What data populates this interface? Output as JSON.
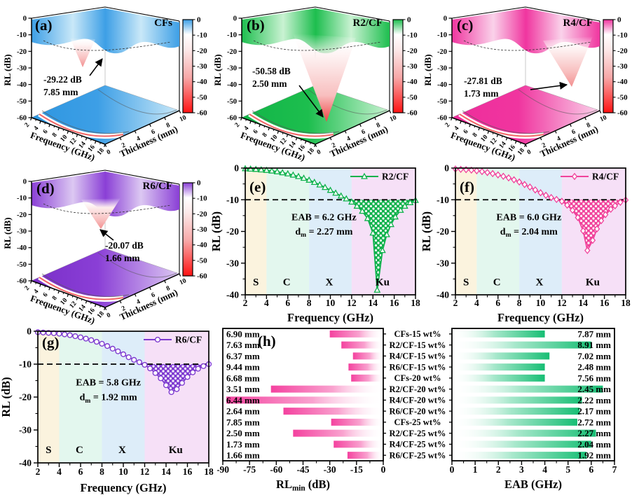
{
  "panels": {
    "a": {
      "letter": "(a)",
      "sample": "CFs"
    },
    "b": {
      "letter": "(b)",
      "sample": "R2/CF"
    },
    "c": {
      "letter": "(c)",
      "sample": "R4/CF"
    },
    "d": {
      "letter": "(d)",
      "sample": "R6/CF"
    },
    "e": {
      "letter": "(e)"
    },
    "f": {
      "letter": "(f)"
    },
    "g": {
      "letter": "(g)"
    },
    "h": {
      "letter": "(h)"
    }
  },
  "colors": {
    "accent_blue": "#3D9FE6",
    "accent_green": "#1DBE4E",
    "accent_magenta": "#F0359F",
    "accent_purple": "#8A3FD6",
    "line_green": "#0DB14B",
    "line_pink": "#F0439B",
    "line_purple": "#7E3BD0",
    "bar_pink": "#F4429F",
    "bar_green": "#17BE74",
    "highlight_red": "#EE1111",
    "band_s": "#FBF3DE",
    "band_c": "#E3F7EE",
    "band_x": "#DDEDF9",
    "band_ku": "#F6E0F7",
    "colorbar_red": "#FF1212"
  },
  "chart_data": [
    {
      "type": "surface3d",
      "panel": "a",
      "sample": "CFs",
      "accent": "#3D9FE6",
      "floor_dark": "#2E96E0",
      "light": "#C9E8F8",
      "annotation": {
        "rl": "-29.22 dB",
        "thickness": "7.85 mm"
      },
      "rl_min_db": -29.22,
      "optimal_thickness_mm": 7.85,
      "x": {
        "label": "Frequency (GHz)",
        "range": [
          2,
          18
        ],
        "ticks": [
          2,
          4,
          6,
          8,
          10,
          12,
          14,
          16,
          18
        ]
      },
      "y": {
        "label": "Thickness (mm)",
        "range": [
          0,
          10
        ],
        "ticks": [
          0,
          2,
          4,
          6,
          8,
          10
        ]
      },
      "z": {
        "label": "RL (dB)",
        "range": [
          -60,
          0
        ],
        "ticks": [
          0,
          -10,
          -20,
          -30,
          -40,
          -50,
          -60
        ]
      },
      "colorbar_ticks": [
        0,
        -10,
        -20,
        -30,
        -40,
        -50,
        -60
      ]
    },
    {
      "type": "surface3d",
      "panel": "b",
      "sample": "R2/CF",
      "accent": "#1DBE4E",
      "floor_dark": "#12B548",
      "light": "#C9F2D2",
      "annotation": {
        "rl": "-50.58 dB",
        "thickness": "2.50 mm"
      },
      "rl_min_db": -50.58,
      "optimal_thickness_mm": 2.5,
      "x": {
        "label": "Frequency (GHz)",
        "range": [
          2,
          18
        ],
        "ticks": [
          2,
          4,
          6,
          8,
          10,
          12,
          14,
          16,
          18
        ]
      },
      "y": {
        "label": "Thickness (mm)",
        "range": [
          0,
          10
        ],
        "ticks": [
          0,
          2,
          4,
          6,
          8,
          10
        ]
      },
      "z": {
        "label": "RL (dB)",
        "range": [
          -60,
          0
        ],
        "ticks": [
          0,
          -10,
          -20,
          -30,
          -40,
          -50,
          -60
        ]
      },
      "colorbar_ticks": [
        0,
        -10,
        -20,
        -30,
        -40,
        -50,
        -60
      ]
    },
    {
      "type": "surface3d",
      "panel": "c",
      "sample": "R4/CF",
      "accent": "#F0359F",
      "floor_dark": "#EE2D9B",
      "light": "#FAD2EA",
      "annotation": {
        "rl": "-27.81 dB",
        "thickness": "1.73 mm"
      },
      "rl_min_db": -27.81,
      "optimal_thickness_mm": 1.73,
      "x": {
        "label": "Frequency (GHz)",
        "range": [
          2,
          18
        ],
        "ticks": [
          2,
          4,
          6,
          8,
          10,
          12,
          14,
          16,
          18
        ]
      },
      "y": {
        "label": "Thickness (mm)",
        "range": [
          0,
          10
        ],
        "ticks": [
          0,
          2,
          4,
          6,
          8,
          10
        ]
      },
      "z": {
        "label": "RL (dB)",
        "range": [
          -60,
          0
        ],
        "ticks": [
          0,
          -10,
          -20,
          -30,
          -40,
          -50,
          -60
        ]
      },
      "colorbar_ticks": [
        0,
        -10,
        -20,
        -30,
        -40,
        -50,
        -60
      ]
    },
    {
      "type": "surface3d",
      "panel": "d",
      "sample": "R6/CF",
      "accent": "#8A3FD6",
      "floor_dark": "#7A2FC8",
      "light": "#DCC8F2",
      "annotation": {
        "rl": "-20.07 dB",
        "thickness": "1.66 mm"
      },
      "rl_min_db": -20.07,
      "optimal_thickness_mm": 1.66,
      "x": {
        "label": "Frequency (GHz)",
        "range": [
          2,
          18
        ],
        "ticks": [
          2,
          4,
          6,
          8,
          10,
          12,
          14,
          16,
          18
        ]
      },
      "y": {
        "label": "Thickness (mm)",
        "range": [
          0,
          10
        ],
        "ticks": [
          0,
          2,
          4,
          6,
          8,
          10
        ]
      },
      "z": {
        "label": "RL (dB)",
        "range": [
          -60,
          0
        ],
        "ticks": [
          0,
          -10,
          -20,
          -30,
          -40,
          -50,
          -60
        ]
      },
      "colorbar_ticks": [
        0,
        -10,
        -20,
        -30,
        -40,
        -50,
        -60
      ]
    },
    {
      "type": "line",
      "panel": "e",
      "legend": "R2/CF",
      "marker": "triangle",
      "color": "#0DB14B",
      "xlabel": "Frequency (GHz)",
      "ylabel": "RL (dB)",
      "xlim": [
        2,
        18
      ],
      "ylim": [
        -40,
        0
      ],
      "xticks": [
        2,
        4,
        6,
        8,
        10,
        12,
        14,
        16,
        18
      ],
      "yticks": [
        0,
        -10,
        -20,
        -30,
        -40
      ],
      "ref_line": -10,
      "annotation_line1": "EAB = 6.2 GHz",
      "annotation_line2_parts": [
        {
          "t": "d"
        },
        {
          "t": "m",
          "sub": true
        },
        {
          "t": " = 2.27 mm"
        }
      ],
      "eab_ghz": 6.2,
      "dm_mm": 2.27,
      "bands": [
        {
          "name": "S",
          "range": [
            2,
            4
          ],
          "color": "#FBF3DE",
          "label_x": 3
        },
        {
          "name": "C",
          "range": [
            4,
            8
          ],
          "color": "#E3F7EE",
          "label_x": 5.9
        },
        {
          "name": "X",
          "range": [
            8,
            12
          ],
          "color": "#DDEDF9",
          "label_x": 9.9
        },
        {
          "name": "Ku",
          "range": [
            12,
            18
          ],
          "color": "#F6E0F7",
          "label_x": 14.9
        }
      ],
      "points": [
        [
          2,
          -0.2
        ],
        [
          2.5,
          -0.3
        ],
        [
          3,
          -0.4
        ],
        [
          3.5,
          -0.55
        ],
        [
          4,
          -0.7
        ],
        [
          4.5,
          -0.9
        ],
        [
          5,
          -1.15
        ],
        [
          5.5,
          -1.45
        ],
        [
          6,
          -1.8
        ],
        [
          6.5,
          -2.2
        ],
        [
          7,
          -2.65
        ],
        [
          7.5,
          -3.2
        ],
        [
          8,
          -3.8
        ],
        [
          8.5,
          -4.5
        ],
        [
          9,
          -5.3
        ],
        [
          9.5,
          -6.1
        ],
        [
          10,
          -7
        ],
        [
          10.5,
          -7.9
        ],
        [
          11,
          -8.8
        ],
        [
          11.5,
          -9.7
        ],
        [
          12,
          -10.7
        ],
        [
          12.5,
          -12
        ],
        [
          13,
          -13.6
        ],
        [
          13.5,
          -15.9
        ],
        [
          14,
          -20.5
        ],
        [
          14.4,
          -38.5
        ],
        [
          14.9,
          -26
        ],
        [
          15.3,
          -21
        ],
        [
          15.7,
          -17.8
        ],
        [
          16.1,
          -15.4
        ],
        [
          16.6,
          -13.3
        ],
        [
          17,
          -12
        ],
        [
          17.5,
          -10.9
        ],
        [
          18,
          -10.2
        ]
      ]
    },
    {
      "type": "line",
      "panel": "f",
      "legend": "R4/CF",
      "marker": "diamond",
      "color": "#F0439B",
      "xlabel": "Frequency (GHz)",
      "ylabel": "RL (dB)",
      "xlim": [
        2,
        18
      ],
      "ylim": [
        -40,
        0
      ],
      "xticks": [
        2,
        4,
        6,
        8,
        10,
        12,
        14,
        16,
        18
      ],
      "yticks": [
        0,
        -10,
        -20,
        -30,
        -40
      ],
      "ref_line": -10,
      "annotation_line1": "EAB = 6.0 GHz",
      "annotation_line2_parts": [
        {
          "t": "d"
        },
        {
          "t": "m",
          "sub": true
        },
        {
          "t": " = 2.04 mm"
        }
      ],
      "eab_ghz": 6.0,
      "dm_mm": 2.04,
      "bands": [
        {
          "name": "S",
          "range": [
            2,
            4
          ],
          "color": "#FBF3DE",
          "label_x": 3
        },
        {
          "name": "C",
          "range": [
            4,
            8
          ],
          "color": "#E3F7EE",
          "label_x": 5.9
        },
        {
          "name": "X",
          "range": [
            8,
            12
          ],
          "color": "#DDEDF9",
          "label_x": 9.9
        },
        {
          "name": "Ku",
          "range": [
            12,
            18
          ],
          "color": "#F6E0F7",
          "label_x": 14.9
        }
      ],
      "points": [
        [
          2,
          -0.3
        ],
        [
          2.5,
          -0.4
        ],
        [
          3,
          -0.5
        ],
        [
          3.5,
          -0.65
        ],
        [
          4,
          -0.85
        ],
        [
          4.5,
          -1.1
        ],
        [
          5,
          -1.4
        ],
        [
          5.5,
          -1.75
        ],
        [
          6,
          -2.15
        ],
        [
          6.5,
          -2.6
        ],
        [
          7,
          -3.1
        ],
        [
          7.5,
          -3.7
        ],
        [
          8,
          -4.4
        ],
        [
          8.5,
          -5.2
        ],
        [
          9,
          -6
        ],
        [
          9.5,
          -6.9
        ],
        [
          10,
          -7.8
        ],
        [
          10.5,
          -8.6
        ],
        [
          11,
          -9.3
        ],
        [
          11.5,
          -9.9
        ],
        [
          12,
          -10.5
        ],
        [
          12.5,
          -11.7
        ],
        [
          13,
          -13.3
        ],
        [
          13.5,
          -15.6
        ],
        [
          14,
          -19.8
        ],
        [
          14.4,
          -26
        ],
        [
          14.9,
          -22.8
        ],
        [
          15.3,
          -19.2
        ],
        [
          15.7,
          -16.6
        ],
        [
          16.1,
          -14.7
        ],
        [
          16.6,
          -13
        ],
        [
          17,
          -11.9
        ],
        [
          17.5,
          -10.8
        ],
        [
          18,
          -10.1
        ]
      ]
    },
    {
      "type": "line",
      "panel": "g",
      "legend": "R6/CF",
      "marker": "circle",
      "color": "#7E3BD0",
      "xlabel": "Frequency (GHz)",
      "ylabel": "RL (dB)",
      "xlim": [
        2,
        18
      ],
      "ylim": [
        -40,
        0
      ],
      "xticks": [
        2,
        4,
        6,
        8,
        10,
        12,
        14,
        16,
        18
      ],
      "yticks": [
        0,
        -10,
        -20,
        -30,
        -40
      ],
      "ref_line": -10,
      "annotation_line1": "EAB = 5.8 GHz",
      "annotation_line2_parts": [
        {
          "t": "d"
        },
        {
          "t": "m",
          "sub": true
        },
        {
          "t": " = 1.92 mm"
        }
      ],
      "eab_ghz": 5.8,
      "dm_mm": 1.92,
      "bands": [
        {
          "name": "S",
          "range": [
            2,
            4
          ],
          "color": "#FBF3DE",
          "label_x": 3
        },
        {
          "name": "C",
          "range": [
            4,
            8
          ],
          "color": "#E3F7EE",
          "label_x": 5.9
        },
        {
          "name": "X",
          "range": [
            8,
            12
          ],
          "color": "#DDEDF9",
          "label_x": 9.9
        },
        {
          "name": "Ku",
          "range": [
            12,
            18
          ],
          "color": "#F6E0F7",
          "label_x": 14.9
        }
      ],
      "points": [
        [
          2,
          -0.3
        ],
        [
          2.5,
          -0.4
        ],
        [
          3,
          -0.5
        ],
        [
          3.5,
          -0.6
        ],
        [
          4,
          -0.75
        ],
        [
          4.5,
          -0.95
        ],
        [
          5,
          -1.2
        ],
        [
          5.5,
          -1.5
        ],
        [
          6,
          -1.85
        ],
        [
          6.5,
          -2.25
        ],
        [
          7,
          -2.7
        ],
        [
          7.5,
          -3.2
        ],
        [
          8,
          -3.8
        ],
        [
          8.5,
          -4.5
        ],
        [
          9,
          -5.3
        ],
        [
          9.5,
          -6.1
        ],
        [
          10,
          -7
        ],
        [
          10.5,
          -7.9
        ],
        [
          11,
          -8.7
        ],
        [
          11.5,
          -9.4
        ],
        [
          12,
          -10.2
        ],
        [
          12.5,
          -11.3
        ],
        [
          13,
          -12.7
        ],
        [
          13.5,
          -14.3
        ],
        [
          14,
          -16.4
        ],
        [
          14.5,
          -18.5
        ],
        [
          15,
          -17.6
        ],
        [
          15.5,
          -15.7
        ],
        [
          16,
          -13.9
        ],
        [
          16.5,
          -12.5
        ],
        [
          17,
          -11.4
        ],
        [
          17.5,
          -10.6
        ],
        [
          18,
          -10
        ]
      ]
    },
    {
      "type": "bar",
      "panel": "h-left",
      "direction": "left",
      "bar_color": "#F4429F",
      "axis_label_parts": [
        {
          "t": "RL"
        },
        {
          "t": "min",
          "sub": true
        },
        {
          "t": " (dB)"
        }
      ],
      "xlim": [
        -90,
        0
      ],
      "xticks": [
        -90,
        -75,
        -60,
        -45,
        -30,
        -15,
        0
      ],
      "categories": [
        "CFs-15 wt%",
        "R2/CF-15 wt%",
        "R4/CF-15 wt%",
        "R6/CF-15 wt%",
        "CFs-20 wt%",
        "R2/CF-20 wt%",
        "R4/CF-20 wt%",
        "R6/CF-20 wt%",
        "CFs-25 wt%",
        "R2/CF-25 wt%",
        "R4/CF-25 wt%",
        "R6/CF-25 wt%"
      ],
      "values": [
        -30,
        -23.5,
        -17,
        -19.5,
        -18,
        -63,
        -88,
        -56,
        -29.22,
        -50.58,
        -27.81,
        -20.07
      ],
      "bar_labels": [
        "6.90 mm",
        "7.63 mm",
        "6.37 mm",
        "9.44 mm",
        "6.68 mm",
        "3.51 mm",
        "6.44 mm",
        "2.64 mm",
        "7.85 mm",
        "2.50 mm",
        "1.73 mm",
        "1.66 mm"
      ],
      "red_label_indices": [
        5,
        6,
        9
      ]
    },
    {
      "type": "bar",
      "panel": "h-right",
      "direction": "right",
      "bar_color": "#17BE74",
      "axis_label_parts": [
        {
          "t": "EAB (GHz)"
        }
      ],
      "xlim": [
        0,
        7
      ],
      "xticks": [
        0,
        1,
        2,
        3,
        4,
        5,
        6,
        7
      ],
      "categories": [
        "CFs-15 wt%",
        "R2/CF-15 wt%",
        "R4/CF-15 wt%",
        "R6/CF-15 wt%",
        "CFs-20 wt%",
        "R2/CF-20 wt%",
        "R4/CF-20 wt%",
        "R6/CF-20 wt%",
        "CFs-25 wt%",
        "R2/CF-25 wt%",
        "R4/CF-25 wt%",
        "R6/CF-25 wt%"
      ],
      "values": [
        4.0,
        6.0,
        4.2,
        4.0,
        4.0,
        6.5,
        5.6,
        5.5,
        5.4,
        6.2,
        6.0,
        5.8
      ],
      "bar_labels": [
        "7.87 mm",
        "8.91 mm",
        "7.02 mm",
        "2.48 mm",
        "7.56 mm",
        "2.45 mm",
        "2.22 mm",
        "2.17 mm",
        "2.72 mm",
        "2.27 mm",
        "2.04 mm",
        "1.92 mm"
      ],
      "red_label_indices": [
        1,
        5,
        9
      ]
    }
  ]
}
